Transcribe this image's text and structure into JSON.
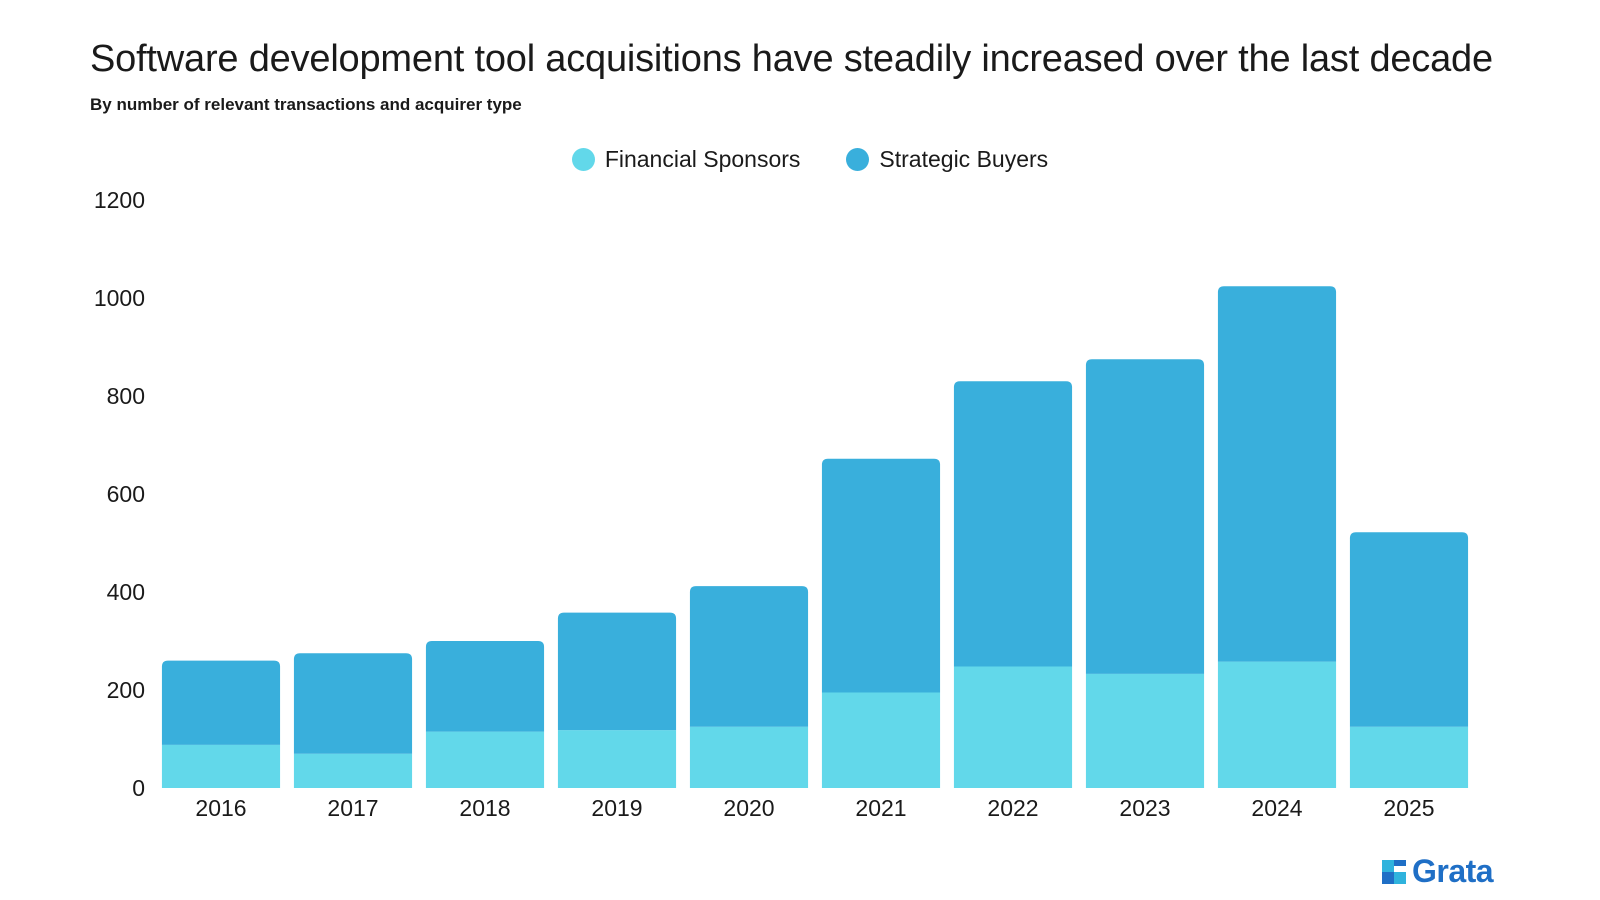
{
  "title": "Software development tool acquisitions have steadily increased over the last decade",
  "subtitle": "By number of relevant transactions and acquirer type",
  "legend": [
    {
      "label": "Financial Sponsors",
      "color": "#62d8ea"
    },
    {
      "label": "Strategic Buyers",
      "color": "#39afdc"
    }
  ],
  "logo": {
    "text": "Grata",
    "color": "#1f6fc6"
  },
  "chart_data": {
    "type": "bar",
    "stacked": true,
    "categories": [
      "2016",
      "2017",
      "2018",
      "2019",
      "2020",
      "2021",
      "2022",
      "2023",
      "2024",
      "2025"
    ],
    "series": [
      {
        "name": "Financial Sponsors",
        "color": "#62d8ea",
        "values": [
          88,
          70,
          115,
          118,
          125,
          195,
          248,
          233,
          258,
          125
        ]
      },
      {
        "name": "Strategic Buyers",
        "color": "#39afdc",
        "values": [
          172,
          205,
          185,
          240,
          287,
          477,
          582,
          642,
          766,
          397
        ]
      }
    ],
    "ylim": [
      0,
      1200
    ],
    "yticks": [
      0,
      200,
      400,
      600,
      800,
      1000,
      1200
    ],
    "grid": false,
    "legend_position": "top-center"
  }
}
